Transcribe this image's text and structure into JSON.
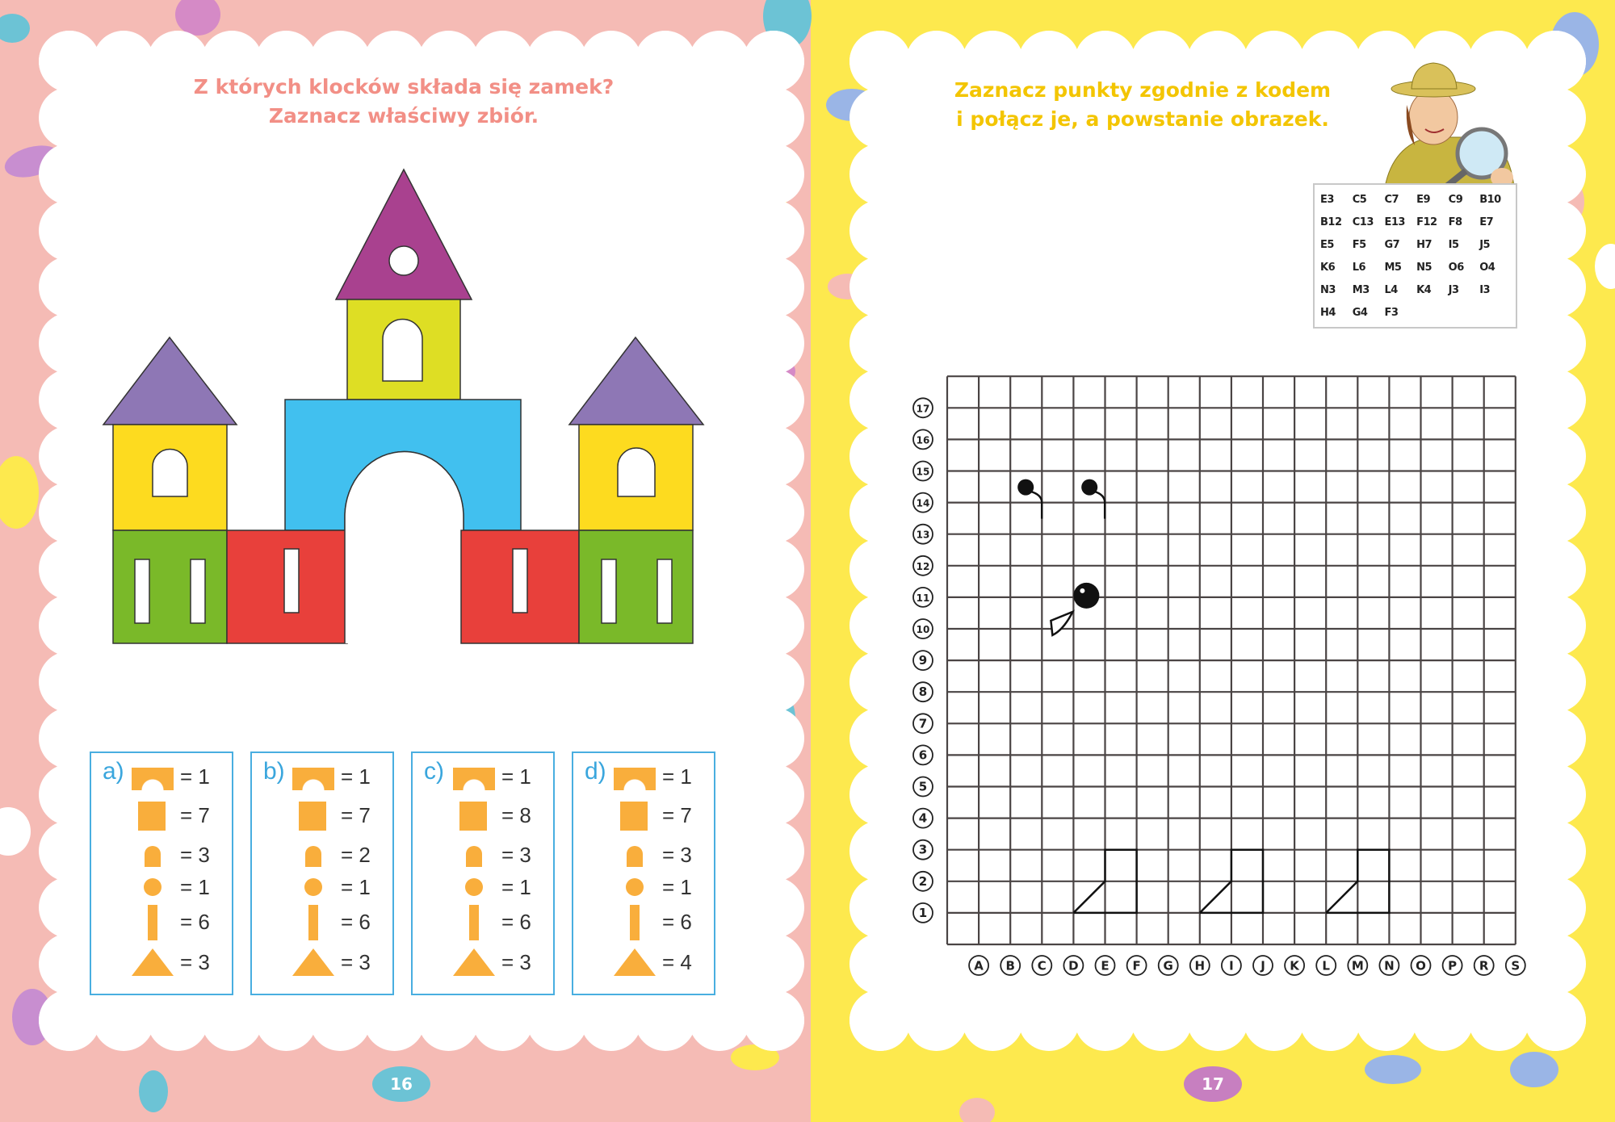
{
  "left_page": {
    "title_line1": "Z których klocków składa się zamek?",
    "title_line2": "Zaznacz właściwy zbiór.",
    "page_number": "16",
    "options": [
      {
        "letter": "a)",
        "counts": [
          "= 1",
          "= 7",
          "= 3",
          "= 1",
          "= 6",
          "= 3"
        ]
      },
      {
        "letter": "b)",
        "counts": [
          "= 1",
          "= 7",
          "= 2",
          "= 1",
          "= 6",
          "= 3"
        ]
      },
      {
        "letter": "c)",
        "counts": [
          "= 1",
          "= 8",
          "= 3",
          "= 1",
          "= 6",
          "= 3"
        ]
      },
      {
        "letter": "d)",
        "counts": [
          "= 1",
          "= 7",
          "= 3",
          "= 1",
          "= 6",
          "= 4"
        ]
      }
    ],
    "block_shapes": [
      "arch-block",
      "square-block",
      "small-arch-block",
      "circle-block",
      "bar-block",
      "triangle-block"
    ],
    "colors": {
      "background": "#f5bbb5",
      "title": "#f28f86",
      "shape": "#f9ae3c",
      "option_border": "#49aee0",
      "page_badge": "#6cc3d5"
    }
  },
  "right_page": {
    "title_line1": "Zaznacz punkty zgodnie z kodem",
    "title_line2": "i połącz je, a powstanie obrazek.",
    "page_number": "17",
    "code_rows": [
      [
        "E3",
        "C5",
        "C7",
        "E9",
        "C9",
        "B10"
      ],
      [
        "B12",
        "C13",
        "E13",
        "F12",
        "F8",
        "E7"
      ],
      [
        "E5",
        "F5",
        "G7",
        "H7",
        "I5",
        "J5"
      ],
      [
        "K6",
        "L6",
        "M5",
        "N5",
        "O6",
        "O4"
      ],
      [
        "N3",
        "M3",
        "L4",
        "K4",
        "J3",
        "I3"
      ],
      [
        "H4",
        "G4",
        "F3"
      ]
    ],
    "grid": {
      "columns": [
        "A",
        "B",
        "C",
        "D",
        "E",
        "F",
        "G",
        "H",
        "I",
        "J",
        "K",
        "L",
        "M",
        "N",
        "O",
        "P",
        "R",
        "S"
      ],
      "rows": [
        "1",
        "2",
        "3",
        "4",
        "5",
        "6",
        "7",
        "8",
        "9",
        "10",
        "11",
        "12",
        "13",
        "14",
        "15",
        "16",
        "17"
      ],
      "feet": [
        [
          "D1",
          "E2",
          "E3",
          "F3",
          "F1",
          "D1"
        ],
        [
          "H1",
          "I2",
          "I3",
          "J3",
          "J1",
          "H1"
        ],
        [
          "L1",
          "M2",
          "M3",
          "N3",
          "N1",
          "L1"
        ]
      ]
    },
    "colors": {
      "background": "#fde94e",
      "title": "#f3c500",
      "page_badge": "#c77fc0"
    }
  }
}
